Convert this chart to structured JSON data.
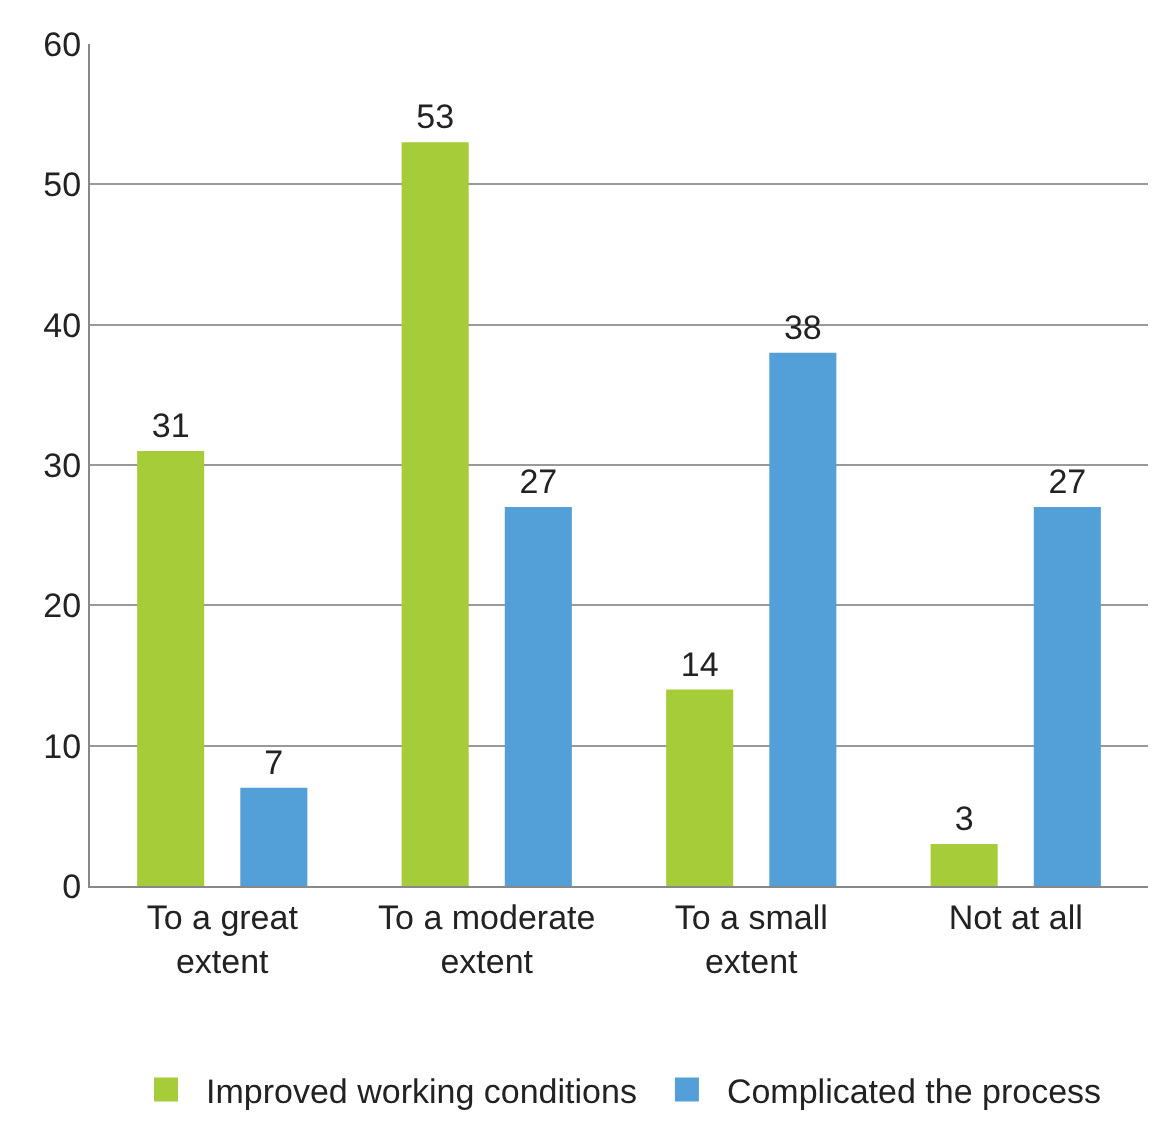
{
  "chart_data": {
    "type": "bar",
    "categories": [
      "To a great extent",
      "To a moderate extent",
      "To a small extent",
      "Not at all"
    ],
    "series": [
      {
        "name": "Improved working conditions",
        "color": "#a6cc3a",
        "values": [
          31,
          53,
          14,
          3
        ]
      },
      {
        "name": "Complicated the process",
        "color": "#539fd8",
        "values": [
          7,
          27,
          38,
          27
        ]
      }
    ],
    "ylim": [
      0,
      60
    ],
    "yticks": [
      0,
      10,
      20,
      30,
      40,
      50,
      60
    ],
    "grid": "y",
    "legend": "bottom",
    "data_labels": true
  }
}
